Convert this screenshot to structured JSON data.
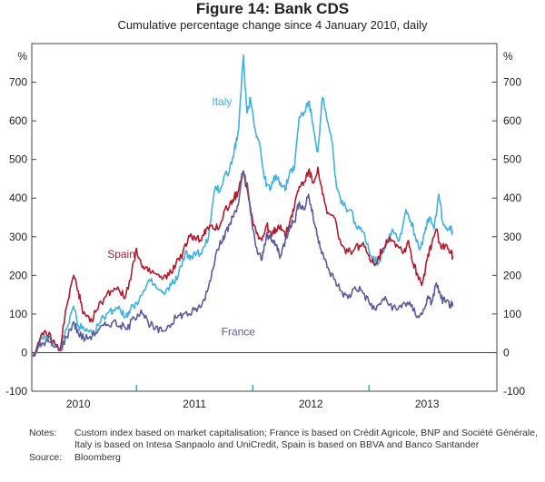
{
  "chart_data": {
    "type": "line",
    "title": "Figure 14: Bank CDS",
    "subtitle": "Cumulative percentage change since 4 January 2010, daily",
    "ylabel_left": "%",
    "ylabel_right": "%",
    "ylim": [
      -100,
      800
    ],
    "yticks": [
      -100,
      0,
      100,
      200,
      300,
      400,
      500,
      600,
      700
    ],
    "xlim": [
      2009.6,
      2013.6
    ],
    "xticks": [
      "2010",
      "2011",
      "2012",
      "2013"
    ],
    "series": [
      {
        "name": "Italy",
        "color": "#3fb2e0",
        "points": [
          [
            2009.61,
            -10
          ],
          [
            2009.66,
            20
          ],
          [
            2009.72,
            40
          ],
          [
            2009.78,
            25
          ],
          [
            2009.84,
            10
          ],
          [
            2009.9,
            60
          ],
          [
            2009.96,
            120
          ],
          [
            2010.0,
            70
          ],
          [
            2010.06,
            55
          ],
          [
            2010.12,
            45
          ],
          [
            2010.18,
            75
          ],
          [
            2010.24,
            100
          ],
          [
            2010.3,
            110
          ],
          [
            2010.35,
            120
          ],
          [
            2010.4,
            90
          ],
          [
            2010.45,
            115
          ],
          [
            2010.5,
            130
          ],
          [
            2010.55,
            150
          ],
          [
            2010.62,
            185
          ],
          [
            2010.68,
            165
          ],
          [
            2010.74,
            150
          ],
          [
            2010.8,
            175
          ],
          [
            2010.86,
            200
          ],
          [
            2010.92,
            260
          ],
          [
            2010.96,
            240
          ],
          [
            2011.0,
            260
          ],
          [
            2011.06,
            255
          ],
          [
            2011.12,
            300
          ],
          [
            2011.18,
            430
          ],
          [
            2011.22,
            420
          ],
          [
            2011.26,
            460
          ],
          [
            2011.3,
            470
          ],
          [
            2011.34,
            520
          ],
          [
            2011.38,
            580
          ],
          [
            2011.42,
            770
          ],
          [
            2011.45,
            620
          ],
          [
            2011.48,
            660
          ],
          [
            2011.52,
            580
          ],
          [
            2011.56,
            540
          ],
          [
            2011.6,
            450
          ],
          [
            2011.65,
            420
          ],
          [
            2011.7,
            460
          ],
          [
            2011.74,
            440
          ],
          [
            2011.78,
            420
          ],
          [
            2011.82,
            470
          ],
          [
            2011.86,
            480
          ],
          [
            2011.9,
            610
          ],
          [
            2011.94,
            620
          ],
          [
            2011.98,
            650
          ],
          [
            2012.02,
            590
          ],
          [
            2012.06,
            520
          ],
          [
            2012.1,
            660
          ],
          [
            2012.14,
            600
          ],
          [
            2012.18,
            550
          ],
          [
            2012.22,
            430
          ],
          [
            2012.28,
            380
          ],
          [
            2012.34,
            370
          ],
          [
            2012.4,
            320
          ],
          [
            2012.46,
            310
          ],
          [
            2012.52,
            250
          ],
          [
            2012.58,
            230
          ],
          [
            2012.64,
            280
          ],
          [
            2012.7,
            320
          ],
          [
            2012.76,
            290
          ],
          [
            2012.82,
            370
          ],
          [
            2012.86,
            340
          ],
          [
            2012.9,
            300
          ],
          [
            2012.94,
            270
          ],
          [
            2012.98,
            310
          ],
          [
            2013.02,
            350
          ],
          [
            2013.06,
            320
          ],
          [
            2013.1,
            410
          ],
          [
            2013.14,
            330
          ],
          [
            2013.18,
            320
          ],
          [
            2013.22,
            315
          ]
        ]
      },
      {
        "name": "Spain",
        "color": "#b01c2e",
        "points": [
          [
            2009.61,
            -10
          ],
          [
            2009.66,
            25
          ],
          [
            2009.72,
            55
          ],
          [
            2009.78,
            30
          ],
          [
            2009.84,
            5
          ],
          [
            2009.9,
            120
          ],
          [
            2009.96,
            200
          ],
          [
            2010.0,
            160
          ],
          [
            2010.04,
            100
          ],
          [
            2010.1,
            80
          ],
          [
            2010.16,
            110
          ],
          [
            2010.22,
            140
          ],
          [
            2010.28,
            160
          ],
          [
            2010.34,
            170
          ],
          [
            2010.4,
            140
          ],
          [
            2010.46,
            210
          ],
          [
            2010.5,
            270
          ],
          [
            2010.55,
            220
          ],
          [
            2010.6,
            210
          ],
          [
            2010.66,
            205
          ],
          [
            2010.72,
            190
          ],
          [
            2010.78,
            200
          ],
          [
            2010.84,
            230
          ],
          [
            2010.9,
            260
          ],
          [
            2010.96,
            300
          ],
          [
            2011.0,
            300
          ],
          [
            2011.06,
            290
          ],
          [
            2011.1,
            320
          ],
          [
            2011.16,
            320
          ],
          [
            2011.22,
            330
          ],
          [
            2011.26,
            370
          ],
          [
            2011.3,
            380
          ],
          [
            2011.34,
            400
          ],
          [
            2011.38,
            420
          ],
          [
            2011.42,
            470
          ],
          [
            2011.46,
            410
          ],
          [
            2011.5,
            340
          ],
          [
            2011.54,
            310
          ],
          [
            2011.58,
            290
          ],
          [
            2011.62,
            330
          ],
          [
            2011.66,
            300
          ],
          [
            2011.7,
            320
          ],
          [
            2011.74,
            330
          ],
          [
            2011.78,
            300
          ],
          [
            2011.82,
            340
          ],
          [
            2011.86,
            380
          ],
          [
            2011.9,
            430
          ],
          [
            2011.94,
            440
          ],
          [
            2011.98,
            470
          ],
          [
            2012.02,
            440
          ],
          [
            2012.06,
            480
          ],
          [
            2012.1,
            410
          ],
          [
            2012.14,
            360
          ],
          [
            2012.2,
            350
          ],
          [
            2012.26,
            280
          ],
          [
            2012.32,
            260
          ],
          [
            2012.38,
            270
          ],
          [
            2012.44,
            280
          ],
          [
            2012.5,
            250
          ],
          [
            2012.56,
            230
          ],
          [
            2012.62,
            270
          ],
          [
            2012.68,
            300
          ],
          [
            2012.74,
            280
          ],
          [
            2012.8,
            260
          ],
          [
            2012.84,
            290
          ],
          [
            2012.88,
            230
          ],
          [
            2012.92,
            200
          ],
          [
            2012.96,
            180
          ],
          [
            2013.0,
            240
          ],
          [
            2013.04,
            280
          ],
          [
            2013.08,
            320
          ],
          [
            2013.12,
            270
          ],
          [
            2013.16,
            280
          ],
          [
            2013.2,
            260
          ],
          [
            2013.22,
            250
          ]
        ]
      },
      {
        "name": "France",
        "color": "#5b5b9c",
        "points": [
          [
            2009.61,
            -10
          ],
          [
            2009.66,
            15
          ],
          [
            2009.72,
            30
          ],
          [
            2009.78,
            20
          ],
          [
            2009.84,
            5
          ],
          [
            2009.9,
            40
          ],
          [
            2009.96,
            80
          ],
          [
            2010.0,
            50
          ],
          [
            2010.06,
            35
          ],
          [
            2010.12,
            45
          ],
          [
            2010.18,
            60
          ],
          [
            2010.24,
            70
          ],
          [
            2010.3,
            80
          ],
          [
            2010.36,
            70
          ],
          [
            2010.42,
            60
          ],
          [
            2010.48,
            90
          ],
          [
            2010.54,
            110
          ],
          [
            2010.6,
            80
          ],
          [
            2010.66,
            60
          ],
          [
            2010.72,
            55
          ],
          [
            2010.78,
            70
          ],
          [
            2010.84,
            90
          ],
          [
            2010.9,
            100
          ],
          [
            2010.96,
            100
          ],
          [
            2011.0,
            110
          ],
          [
            2011.06,
            120
          ],
          [
            2011.12,
            170
          ],
          [
            2011.18,
            250
          ],
          [
            2011.22,
            290
          ],
          [
            2011.26,
            300
          ],
          [
            2011.3,
            330
          ],
          [
            2011.34,
            360
          ],
          [
            2011.38,
            390
          ],
          [
            2011.42,
            470
          ],
          [
            2011.46,
            420
          ],
          [
            2011.5,
            320
          ],
          [
            2011.54,
            260
          ],
          [
            2011.58,
            240
          ],
          [
            2011.62,
            310
          ],
          [
            2011.66,
            290
          ],
          [
            2011.7,
            280
          ],
          [
            2011.74,
            250
          ],
          [
            2011.78,
            290
          ],
          [
            2011.82,
            330
          ],
          [
            2011.86,
            340
          ],
          [
            2011.9,
            390
          ],
          [
            2011.94,
            370
          ],
          [
            2011.98,
            410
          ],
          [
            2012.02,
            350
          ],
          [
            2012.06,
            300
          ],
          [
            2012.1,
            260
          ],
          [
            2012.14,
            220
          ],
          [
            2012.2,
            190
          ],
          [
            2012.26,
            160
          ],
          [
            2012.32,
            140
          ],
          [
            2012.38,
            170
          ],
          [
            2012.44,
            160
          ],
          [
            2012.5,
            130
          ],
          [
            2012.56,
            110
          ],
          [
            2012.62,
            140
          ],
          [
            2012.68,
            125
          ],
          [
            2012.74,
            110
          ],
          [
            2012.8,
            130
          ],
          [
            2012.86,
            120
          ],
          [
            2012.92,
            95
          ],
          [
            2012.96,
            100
          ],
          [
            2013.0,
            140
          ],
          [
            2013.04,
            130
          ],
          [
            2013.08,
            180
          ],
          [
            2013.12,
            140
          ],
          [
            2013.16,
            130
          ],
          [
            2013.2,
            125
          ],
          [
            2013.22,
            120
          ]
        ]
      }
    ],
    "series_labels": [
      {
        "name": "Italy",
        "text": "Italy",
        "at": [
          2011.15,
          640
        ]
      },
      {
        "name": "Spain",
        "text": "Spain",
        "at": [
          2010.25,
          245
        ]
      },
      {
        "name": "France",
        "text": "France",
        "at": [
          2011.23,
          45
        ]
      }
    ]
  },
  "notes_label": "Notes:",
  "notes_text": "Custom index based on market capitalisation; France is based on Crédit Agricole, BNP and Société Générale, Italy is based on Intesa Sanpaolo and UniCredit, Spain is based on BBVA and Banco Santander",
  "source_label": "Source:",
  "source_text": "Bloomberg"
}
